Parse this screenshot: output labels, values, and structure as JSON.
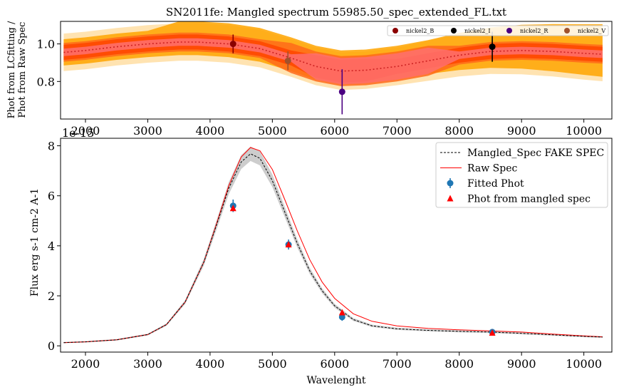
{
  "chart_data": [
    {
      "type": "line",
      "title": "SN2011fe: Mangled spectrum 55985.50_spec_extended_FL.txt",
      "ylabel_line1": "Phot from LCfitting /",
      "ylabel_line2": "Phot from Raw Spec",
      "xlim": [
        1600,
        10450
      ],
      "ylim": [
        0.6,
        1.12
      ],
      "xticks": [
        2000,
        3000,
        4000,
        5000,
        6000,
        7000,
        8000,
        9000,
        10000
      ],
      "yticks": [
        0.8,
        1.0
      ],
      "ratio_curve": {
        "x": [
          1650,
          2000,
          2500,
          3000,
          3500,
          3800,
          4300,
          4800,
          5300,
          5700,
          6100,
          6500,
          7000,
          7500,
          8000,
          8500,
          9000,
          9500,
          10000,
          10300
        ],
        "y": [
          0.955,
          0.965,
          0.985,
          1.0,
          1.01,
          1.01,
          1.0,
          0.975,
          0.925,
          0.88,
          0.855,
          0.86,
          0.88,
          0.91,
          0.94,
          0.96,
          0.965,
          0.96,
          0.95,
          0.945
        ]
      },
      "series": [
        {
          "name": "nickel2_B",
          "x": 4370,
          "y": 1.0,
          "err": 0.05,
          "color": "#8b0000"
        },
        {
          "name": "nickel2_I",
          "x": 8530,
          "y": 0.985,
          "err": 0.08,
          "color": "#000000"
        },
        {
          "name": "nickel2_R",
          "x": 6120,
          "y": 0.745,
          "err": 0.12,
          "color": "#4b0082"
        },
        {
          "name": "nickel2_V",
          "x": 5250,
          "y": 0.91,
          "err": 0.05,
          "color": "#a0522d"
        }
      ],
      "band_colors": [
        "#ffa500",
        "#ff4500",
        "#ff6347"
      ]
    },
    {
      "type": "line",
      "offset_label": "1e-15",
      "xlabel": "Wavelenght",
      "ylabel": "Flux erg s-1 cm-2 A-1",
      "xlim": [
        1600,
        10450
      ],
      "ylim": [
        -0.25,
        8.3
      ],
      "xticks": [
        2000,
        3000,
        4000,
        5000,
        6000,
        7000,
        8000,
        9000,
        10000
      ],
      "yticks": [
        0,
        2,
        4,
        6,
        8
      ],
      "x": [
        1650,
        2000,
        2500,
        3000,
        3300,
        3600,
        3900,
        4100,
        4300,
        4500,
        4650,
        4800,
        5000,
        5200,
        5400,
        5600,
        5800,
        6000,
        6300,
        6600,
        7000,
        7500,
        8000,
        8500,
        9000,
        9500,
        10000,
        10300
      ],
      "series": [
        {
          "name": "Mangled_Spec FAKE SPEC",
          "values": [
            0.13,
            0.16,
            0.24,
            0.45,
            0.85,
            1.75,
            3.35,
            4.8,
            6.3,
            7.35,
            7.68,
            7.5,
            6.6,
            5.35,
            4.1,
            3.0,
            2.2,
            1.6,
            1.05,
            0.8,
            0.68,
            0.62,
            0.58,
            0.55,
            0.5,
            0.44,
            0.38,
            0.35
          ]
        },
        {
          "name": "Raw Spec",
          "values": [
            0.13,
            0.16,
            0.24,
            0.45,
            0.85,
            1.75,
            3.35,
            4.85,
            6.4,
            7.55,
            7.93,
            7.8,
            7.05,
            5.85,
            4.6,
            3.45,
            2.55,
            1.9,
            1.28,
            0.98,
            0.8,
            0.7,
            0.64,
            0.6,
            0.55,
            0.47,
            0.4,
            0.36
          ]
        }
      ],
      "fitted_phot": {
        "name": "Fitted Phot",
        "x": [
          4370,
          5260,
          6120,
          8530
        ],
        "y": [
          5.6,
          4.05,
          1.15,
          0.55
        ],
        "err": [
          0.25,
          0.2,
          0.15,
          0.05
        ]
      },
      "phot_from_mangled": {
        "name": "Phot from mangled spec",
        "x": [
          4370,
          5260,
          6120,
          8530
        ],
        "y": [
          5.5,
          4.05,
          1.33,
          0.52
        ]
      }
    }
  ]
}
